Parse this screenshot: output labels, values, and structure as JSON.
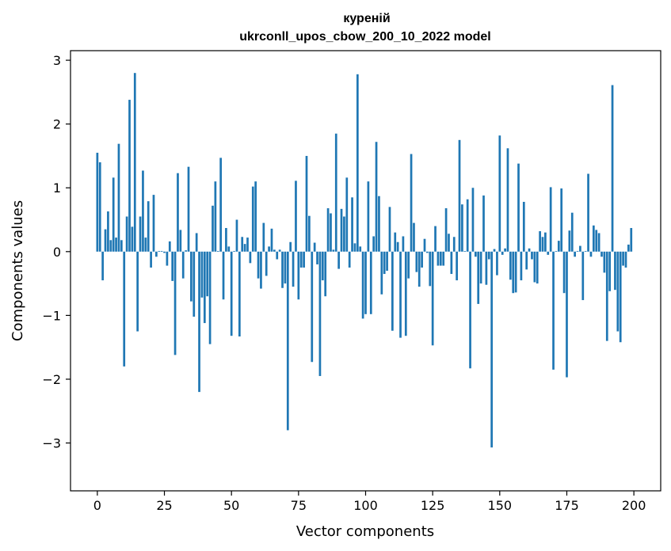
{
  "chart_data": {
    "type": "bar",
    "title": "куреній",
    "subtitle": "ukrconll_upos_cbow_200_10_2022 model",
    "xlabel": "Vector components",
    "ylabel": "Components values",
    "xlim": [
      -10,
      210
    ],
    "ylim": [
      -3.75,
      3.15
    ],
    "xticks": [
      0,
      25,
      50,
      75,
      100,
      125,
      150,
      175,
      200
    ],
    "yticks": [
      -3,
      -2,
      -1,
      0,
      1,
      2,
      3
    ],
    "ytick_labels": [
      "−3",
      "−2",
      "−1",
      "0",
      "1",
      "2",
      "3"
    ],
    "bar_color": "#1f77b4",
    "grid": false,
    "legend": "none",
    "x": [
      0,
      1,
      2,
      3,
      4,
      5,
      6,
      7,
      8,
      9,
      10,
      11,
      12,
      13,
      14,
      15,
      16,
      17,
      18,
      19,
      20,
      21,
      22,
      23,
      24,
      25,
      26,
      27,
      28,
      29,
      30,
      31,
      32,
      33,
      34,
      35,
      36,
      37,
      38,
      39,
      40,
      41,
      42,
      43,
      44,
      45,
      46,
      47,
      48,
      49,
      50,
      51,
      52,
      53,
      54,
      55,
      56,
      57,
      58,
      59,
      60,
      61,
      62,
      63,
      64,
      65,
      66,
      67,
      68,
      69,
      70,
      71,
      72,
      73,
      74,
      75,
      76,
      77,
      78,
      79,
      80,
      81,
      82,
      83,
      84,
      85,
      86,
      87,
      88,
      89,
      90,
      91,
      92,
      93,
      94,
      95,
      96,
      97,
      98,
      99,
      100,
      101,
      102,
      103,
      104,
      105,
      106,
      107,
      108,
      109,
      110,
      111,
      112,
      113,
      114,
      115,
      116,
      117,
      118,
      119,
      120,
      121,
      122,
      123,
      124,
      125,
      126,
      127,
      128,
      129,
      130,
      131,
      132,
      133,
      134,
      135,
      136,
      137,
      138,
      139,
      140,
      141,
      142,
      143,
      144,
      145,
      146,
      147,
      148,
      149,
      150,
      151,
      152,
      153,
      154,
      155,
      156,
      157,
      158,
      159,
      160,
      161,
      162,
      163,
      164,
      165,
      166,
      167,
      168,
      169,
      170,
      171,
      172,
      173,
      174,
      175,
      176,
      177,
      178,
      179,
      180,
      181,
      182,
      183,
      184,
      185,
      186,
      187,
      188,
      189,
      190,
      191,
      192,
      193,
      194,
      195,
      196,
      197,
      198,
      199
    ],
    "values": [
      1.55,
      1.4,
      -0.45,
      0.35,
      0.63,
      0.18,
      1.16,
      0.22,
      1.69,
      0.18,
      -1.8,
      0.55,
      2.38,
      0.39,
      2.8,
      -1.25,
      0.55,
      1.27,
      0.22,
      0.79,
      -0.25,
      0.89,
      -0.08,
      0.01,
      0.01,
      -0.02,
      -0.22,
      0.16,
      -0.46,
      -1.62,
      1.23,
      0.34,
      -0.42,
      0.02,
      1.33,
      -0.78,
      -1.02,
      0.29,
      -2.2,
      -0.72,
      -1.12,
      -0.7,
      -1.45,
      0.72,
      1.1,
      0.01,
      1.47,
      -0.75,
      0.37,
      0.08,
      -1.32,
      0.01,
      0.5,
      -1.33,
      0.23,
      0.12,
      0.22,
      -0.18,
      1.02,
      1.1,
      -0.42,
      -0.58,
      0.45,
      -0.38,
      0.08,
      0.36,
      0.03,
      -0.12,
      0.03,
      -0.57,
      -0.5,
      -2.8,
      0.15,
      -0.55,
      1.11,
      -0.75,
      -0.25,
      -0.25,
      1.5,
      0.56,
      -1.73,
      0.14,
      -0.2,
      -1.95,
      -0.45,
      -0.7,
      0.68,
      0.6,
      0.03,
      1.85,
      -0.27,
      0.67,
      0.55,
      1.16,
      -0.25,
      0.85,
      0.13,
      2.78,
      0.08,
      -1.05,
      -0.98,
      1.1,
      -0.98,
      0.24,
      1.72,
      0.87,
      -0.67,
      -0.35,
      -0.3,
      0.7,
      -1.24,
      0.3,
      0.15,
      -1.35,
      0.24,
      -1.32,
      -0.42,
      1.53,
      0.45,
      -0.32,
      -0.55,
      -0.25,
      0.2,
      -0.02,
      -0.54,
      -1.47,
      0.4,
      -0.22,
      -0.22,
      -0.22,
      0.68,
      0.28,
      -0.35,
      0.23,
      -0.45,
      1.75,
      0.74,
      0.01,
      0.82,
      -1.83,
      1.0,
      -0.08,
      -0.82,
      -0.5,
      0.88,
      -0.52,
      -0.12,
      -3.07,
      0.04,
      -0.37,
      1.82,
      -0.05,
      0.05,
      1.62,
      -0.44,
      -0.65,
      -0.64,
      1.38,
      -0.45,
      0.78,
      -0.28,
      0.05,
      -0.12,
      -0.48,
      -0.5,
      0.32,
      0.23,
      0.3,
      -0.05,
      1.01,
      -1.85,
      0.01,
      0.17,
      0.99,
      -0.65,
      -1.97,
      0.33,
      0.61,
      -0.08,
      0.01,
      0.09,
      -0.76,
      0.01,
      1.22,
      -0.08,
      0.41,
      0.34,
      0.29,
      -0.08,
      -0.33,
      -1.4,
      -0.62,
      2.61,
      -0.6,
      -1.25,
      -1.42,
      -0.22,
      -0.25,
      0.11,
      0.37
    ]
  }
}
